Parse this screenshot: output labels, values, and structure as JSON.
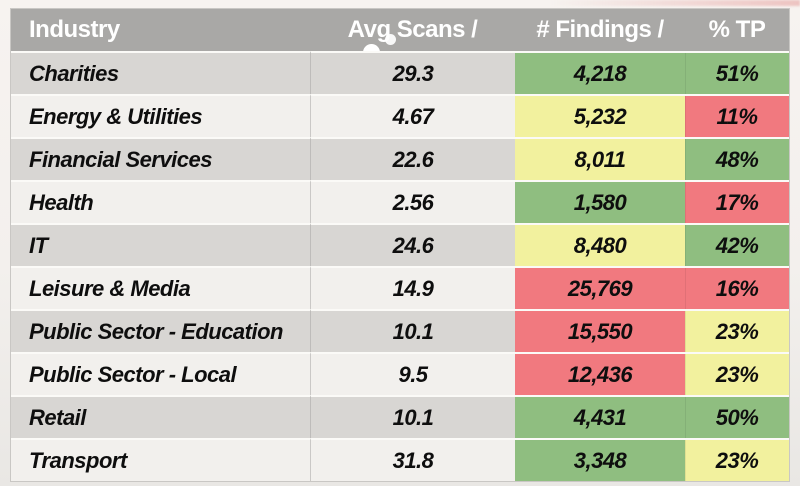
{
  "theme": {
    "colors": {
      "header-bg": "#a9a8a6",
      "header-fg": "#ffffff",
      "row-odd": "#d8d6d3",
      "row-even": "#f2f0ed",
      "green": "#8fbe80",
      "yellow": "#f2f19e",
      "red": "#f1797f"
    }
  },
  "table": {
    "columns": [
      {
        "label": "Industry"
      },
      {
        "label": "Avg Scans /"
      },
      {
        "label": "# Findings /"
      },
      {
        "label": "% TP"
      }
    ],
    "rows": [
      {
        "industry": "Charities",
        "avg_scans": "29.3",
        "findings": "4,218",
        "findings_color": "green",
        "tp": "51%",
        "tp_color": "green"
      },
      {
        "industry": "Energy & Utilities",
        "avg_scans": "4.67",
        "findings": "5,232",
        "findings_color": "yellow",
        "tp": "11%",
        "tp_color": "red"
      },
      {
        "industry": "Financial Services",
        "avg_scans": "22.6",
        "findings": "8,011",
        "findings_color": "yellow",
        "tp": "48%",
        "tp_color": "green"
      },
      {
        "industry": "Health",
        "avg_scans": "2.56",
        "findings": "1,580",
        "findings_color": "green",
        "tp": "17%",
        "tp_color": "red"
      },
      {
        "industry": "IT",
        "avg_scans": "24.6",
        "findings": "8,480",
        "findings_color": "yellow",
        "tp": "42%",
        "tp_color": "green"
      },
      {
        "industry": "Leisure & Media",
        "avg_scans": "14.9",
        "findings": "25,769",
        "findings_color": "red",
        "tp": "16%",
        "tp_color": "red"
      },
      {
        "industry": "Public Sector - Education",
        "avg_scans": "10.1",
        "findings": "15,550",
        "findings_color": "red",
        "tp": "23%",
        "tp_color": "yellow"
      },
      {
        "industry": "Public Sector - Local",
        "avg_scans": "9.5",
        "findings": "12,436",
        "findings_color": "red",
        "tp": "23%",
        "tp_color": "yellow"
      },
      {
        "industry": "Retail",
        "avg_scans": "10.1",
        "findings": "4,431",
        "findings_color": "green",
        "tp": "50%",
        "tp_color": "green"
      },
      {
        "industry": "Transport",
        "avg_scans": "31.8",
        "findings": "3,348",
        "findings_color": "green",
        "tp": "23%",
        "tp_color": "yellow"
      }
    ]
  }
}
